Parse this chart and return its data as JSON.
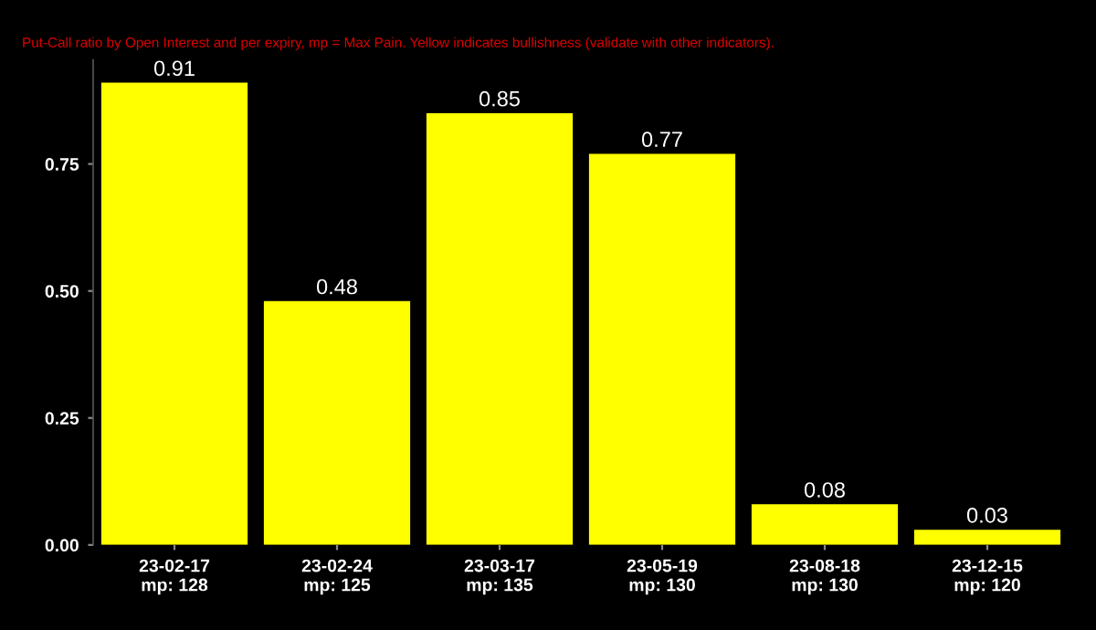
{
  "chart_data": {
    "type": "bar",
    "subtitle": "Put-Call ratio by Open Interest and per expiry, mp = Max Pain. Yellow indicates bullishness (validate with other indicators).",
    "categories": [
      "23-02-17\nmp: 128",
      "23-02-24\nmp: 125",
      "23-03-17\nmp: 135",
      "23-05-19\nmp: 130",
      "23-08-18\nmp: 130",
      "23-12-15\nmp: 120"
    ],
    "values": [
      0.91,
      0.48,
      0.85,
      0.77,
      0.08,
      0.03
    ],
    "color": "#ffff00",
    "ylim": [
      0,
      0.955
    ],
    "yticks": [
      {
        "value": 0,
        "label": "0.00"
      },
      {
        "value": 0.25,
        "label": "0.25"
      },
      {
        "value": 0.5,
        "label": "0.50"
      },
      {
        "value": 0.75,
        "label": "0.75"
      }
    ],
    "data_labels": true,
    "grid": false
  }
}
